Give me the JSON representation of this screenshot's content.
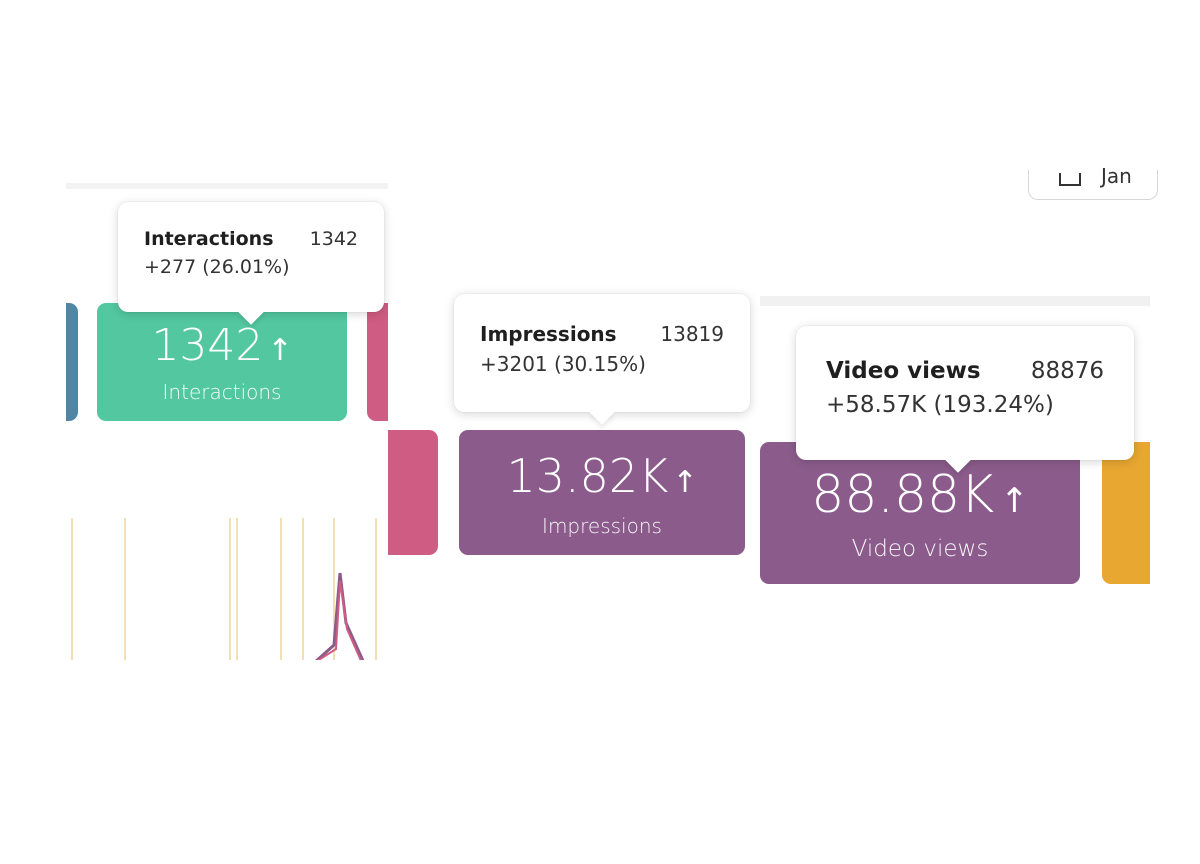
{
  "colors": {
    "interactions": "#53c8a0",
    "impressions": "#8b5c8b",
    "video_views": "#8b5c8b",
    "teal_stub": "#4f86a6",
    "pink_stub": "#cf5c82",
    "orange_stub": "#e8a731",
    "grid": "#f2dfb3"
  },
  "cards": {
    "interactions": {
      "value": "1342",
      "arrow": "↑",
      "label": "Interactions"
    },
    "impressions": {
      "value": "13.82K",
      "arrow": "↑",
      "label": "Impressions"
    },
    "video_views": {
      "value": "88.88K",
      "arrow": "↑",
      "label": "Video views"
    }
  },
  "tooltips": {
    "interactions": {
      "name": "Interactions",
      "value": "1342",
      "change": "+277 (26.01%)"
    },
    "impressions": {
      "name": "Impressions",
      "value": "13819",
      "change": "+3201 (30.15%)"
    },
    "video_views": {
      "name": "Video views",
      "value": "88876",
      "change": "+58.57K (193.24%)"
    }
  },
  "date_button": {
    "icon": "calendar-icon",
    "label": "Jan"
  }
}
